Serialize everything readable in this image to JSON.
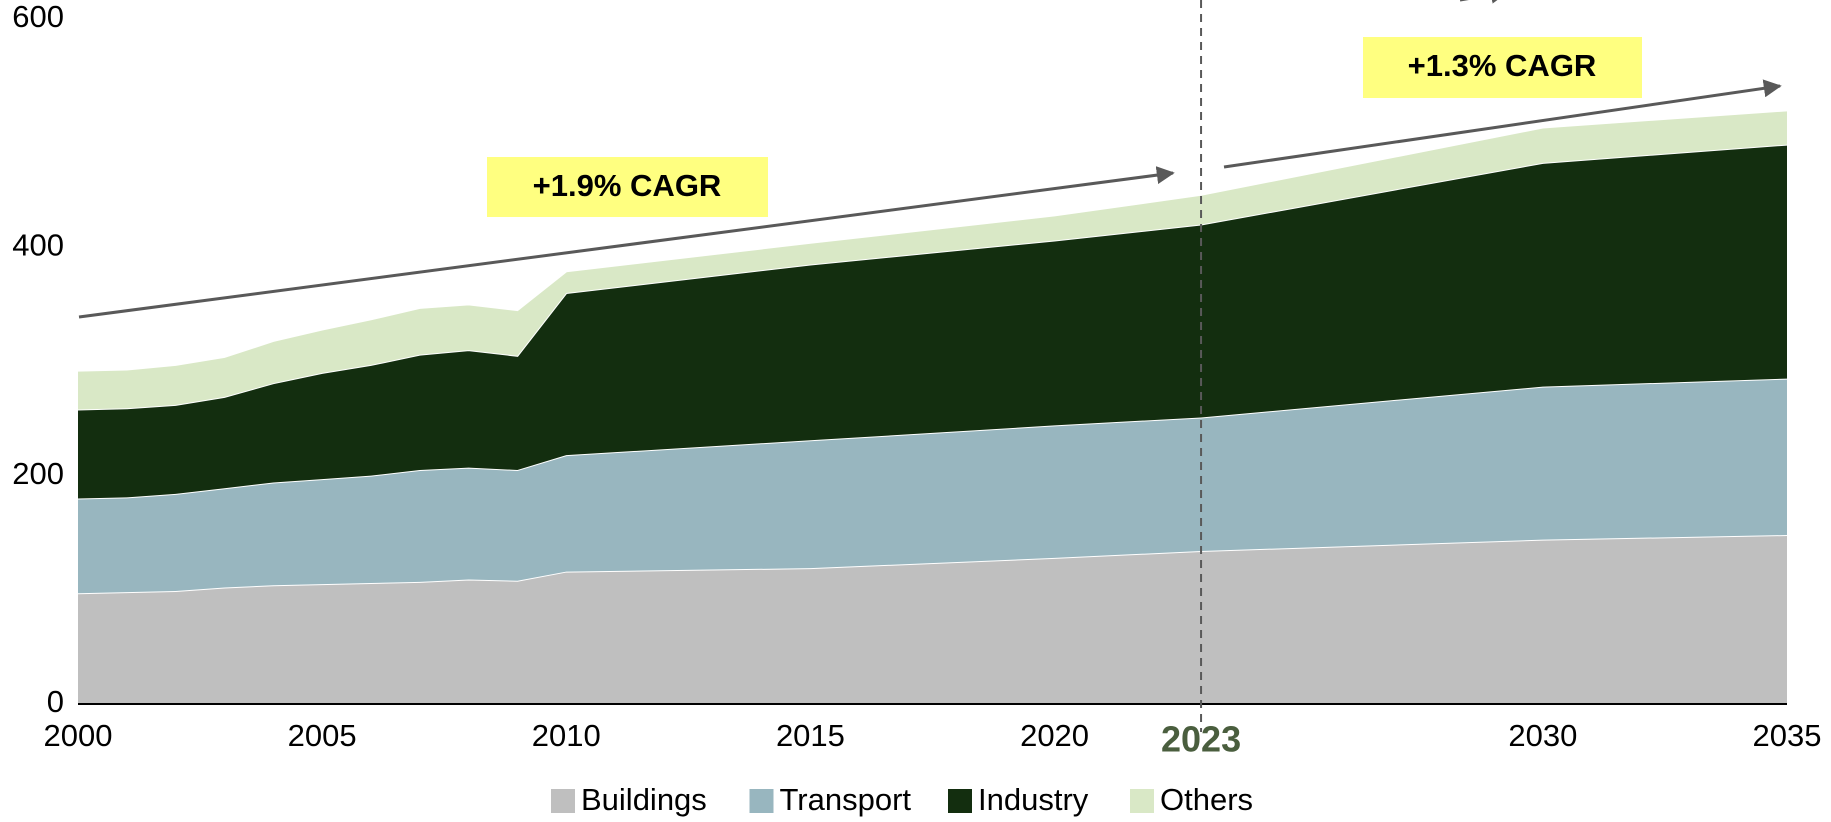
{
  "chart_data": {
    "type": "stacked_area",
    "x": [
      2000,
      2001,
      2002,
      2003,
      2004,
      2005,
      2006,
      2007,
      2008,
      2009,
      2010,
      2015,
      2020,
      2023,
      2030,
      2035
    ],
    "series": [
      {
        "name": "Buildings",
        "color": "#bfbfbf",
        "values": [
          97,
          98,
          99,
          102,
          104,
          105,
          106,
          107,
          109,
          108,
          116,
          119,
          128,
          134,
          144,
          148
        ]
      },
      {
        "name": "Transport",
        "color": "#98b6bf",
        "values": [
          83,
          83,
          85,
          87,
          90,
          92,
          94,
          98,
          98,
          97,
          102,
          112,
          116,
          117,
          134,
          137
        ]
      },
      {
        "name": "Industry",
        "color": "#132e0f",
        "values": [
          78,
          78,
          78,
          80,
          87,
          93,
          97,
          101,
          103,
          100,
          142,
          154,
          162,
          169,
          196,
          205
        ]
      },
      {
        "name": "Others",
        "color": "#d9e8c6",
        "values": [
          34,
          34,
          35,
          35,
          37,
          38,
          40,
          41,
          40,
          40,
          19,
          19,
          22,
          26,
          31,
          30
        ]
      }
    ],
    "xlim": [
      2000,
      2035
    ],
    "xticks": [
      2000,
      2005,
      2010,
      2015,
      2020,
      2023,
      2030,
      2035
    ],
    "ylim": [
      0,
      600
    ],
    "yticks": [
      0,
      200,
      400,
      600
    ],
    "vline": 2023,
    "annotations": [
      "+1.9% CAGR",
      "+1.3% CAGR"
    ],
    "legend": "bottom"
  }
}
